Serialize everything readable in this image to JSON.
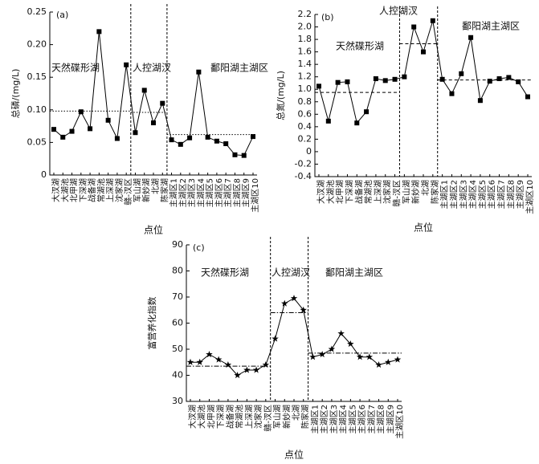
{
  "chart_data": [
    {
      "type": "line",
      "panel": "(a)",
      "ylabel": "总磷/(mg/L)",
      "xlabel": "点位",
      "marker": "square",
      "mean_style": "dotted",
      "ylim": [
        0,
        0.25
      ],
      "yticks": [
        0,
        0.05,
        {
          "value": 0.1,
          "label": "0.10"
        },
        0.15,
        {
          "value": 0.2,
          "label": "0.20"
        },
        0.25
      ],
      "groups": [
        {
          "name": "天然碟形湖",
          "mean": 0.098,
          "categories": [
            "大汊湖",
            "大湖池",
            "北甲湖",
            "下深湖",
            "战备湖",
            "常湖池",
            "上深湖",
            "沈家湖",
            "赣-汊区"
          ],
          "values": [
            0.07,
            0.058,
            0.067,
            0.097,
            0.071,
            0.22,
            0.084,
            0.056,
            0.169
          ]
        },
        {
          "name": "人控湖汊",
          "mean": 0.096,
          "categories": [
            "军山湖",
            "新妙湖",
            "北湖",
            "陈家湖"
          ],
          "values": [
            0.065,
            0.13,
            0.08,
            0.11
          ]
        },
        {
          "name": "鄱阳湖主湖区",
          "mean": 0.062,
          "categories": [
            "主湖区1",
            "主湖区2",
            "主湖区3",
            "主湖区4",
            "主湖区5",
            "主湖区6",
            "主湖区7",
            "主湖区8",
            "主湖区9",
            "主湖区10"
          ],
          "values": [
            0.054,
            0.047,
            0.057,
            0.158,
            0.058,
            0.052,
            0.048,
            0.031,
            0.03,
            0.059
          ]
        }
      ]
    },
    {
      "type": "line",
      "panel": "(b)",
      "ylabel": "总氮/(mg/L)",
      "xlabel": "点位",
      "marker": "square",
      "mean_style": "dashed",
      "ylim": [
        -0.4,
        2.2
      ],
      "yticks": [
        -0.4,
        -0.2,
        0,
        0.2,
        0.4,
        0.6,
        0.8,
        {
          "value": 1,
          "label": "1.0"
        },
        1.2,
        1.4,
        1.6,
        1.8,
        {
          "value": 2,
          "label": "2.0"
        },
        2.2
      ],
      "groups": [
        {
          "name": "天然碟形湖",
          "mean": 0.95,
          "categories": [
            "大汊湖",
            "大湖池",
            "北甲湖",
            "下深湖",
            "战备湖",
            "常湖池",
            "上深湖",
            "沈家湖",
            "赣-汊区"
          ],
          "values": [
            1.05,
            0.49,
            1.11,
            1.12,
            0.46,
            0.64,
            1.17,
            1.14,
            1.16
          ]
        },
        {
          "name": "人控湖汊",
          "mean": 1.73,
          "categories": [
            "军山湖",
            "新妙湖",
            "北湖",
            "陈家湖"
          ],
          "values": [
            1.2,
            2.0,
            1.6,
            2.1
          ]
        },
        {
          "name": "鄱阳湖主湖区",
          "mean": 1.15,
          "categories": [
            "主湖区1",
            "主湖区2",
            "主湖区3",
            "主湖区4",
            "主湖区5",
            "主湖区6",
            "主湖区7",
            "主湖区8",
            "主湖区9",
            "主湖区10"
          ],
          "values": [
            1.16,
            0.93,
            1.25,
            1.83,
            0.82,
            1.13,
            1.17,
            1.19,
            1.12,
            0.88
          ]
        }
      ]
    },
    {
      "type": "line",
      "panel": "(c)",
      "ylabel": "富营养化指数",
      "xlabel": "点位",
      "marker": "star",
      "mean_style": "dashdot",
      "ylim": [
        30,
        90
      ],
      "yticks": [
        30,
        40,
        50,
        60,
        70,
        80,
        90
      ],
      "groups": [
        {
          "name": "天然碟形湖",
          "mean": 43.5,
          "categories": [
            "大汊湖",
            "大湖池",
            "北甲湖",
            "下深湖",
            "战备湖",
            "常湖池",
            "上深湖",
            "沈家湖",
            "赣-汊区"
          ],
          "values": [
            45,
            45,
            48,
            46,
            44,
            40,
            42,
            42,
            44
          ]
        },
        {
          "name": "人控湖汊",
          "mean": 64,
          "categories": [
            "军山湖",
            "新妙湖",
            "北湖",
            "陈家湖"
          ],
          "values": [
            54,
            67.5,
            69.5,
            65
          ]
        },
        {
          "name": "鄱阳湖主湖区",
          "mean": 48.5,
          "categories": [
            "主湖区1",
            "主湖区2",
            "主湖区3",
            "主湖区4",
            "主湖区5",
            "主湖区6",
            "主湖区7",
            "主湖区8",
            "主湖区9",
            "主湖区10"
          ],
          "values": [
            47,
            48,
            50,
            56,
            52,
            47,
            47,
            44,
            45,
            46
          ]
        }
      ]
    }
  ]
}
